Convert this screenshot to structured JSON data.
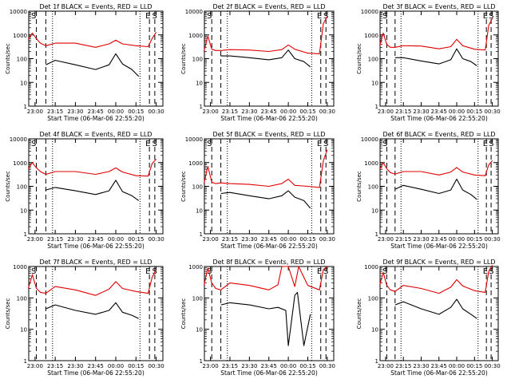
{
  "figure": {
    "background": "#ffffff",
    "axis_color": "#000000",
    "events_color": "#000000",
    "lld_color": "#e00000"
  },
  "panel_labels": [
    "Det 1f",
    "Det 2f",
    "Det 3f",
    "Det 4f",
    "Det 5f",
    "Det 6f",
    "Det 7f",
    "Det 8f",
    "Det 9f"
  ],
  "chart_data": [
    {
      "type": "line",
      "title": "Det 1f BLACK = Events, RED = LLD",
      "xlabel": "Start Time (06-Mar-06 22:55:20)",
      "ylabel": "Counts/sec",
      "xlim": [
        "22:55:20",
        "00:35"
      ],
      "ylim": [
        1,
        10000
      ],
      "yscale": "log",
      "xticks": [
        "23:00",
        "23:15",
        "23:30",
        "23:45",
        "00:00",
        "00:15",
        "00:30"
      ],
      "yticks": [
        "1",
        "10",
        "100",
        "1000",
        "10000"
      ],
      "markers": {
        "dashed": [
          "23:01",
          "23:08",
          "00:25",
          "00:29"
        ],
        "dotted": [
          "23:13",
          "00:18"
        ]
      },
      "letters": [
        "S",
        "E",
        "S"
      ],
      "series": [
        {
          "name": "Events",
          "x": [
            "23:08",
            "23:15",
            "23:30",
            "23:45",
            "23:55",
            "00:00",
            "00:05",
            "00:12",
            "00:17"
          ],
          "y": [
            55,
            85,
            55,
            35,
            55,
            160,
            60,
            35,
            18
          ]
        },
        {
          "name": "LLD",
          "x": [
            "22:55",
            "22:58",
            "23:01",
            "23:04",
            "23:08",
            "23:15",
            "23:30",
            "23:45",
            "23:55",
            "00:00",
            "00:05",
            "00:15",
            "00:24",
            "00:27",
            "00:30"
          ],
          "y": [
            650,
            1200,
            700,
            450,
            350,
            450,
            450,
            300,
            420,
            600,
            420,
            350,
            320,
            700,
            1300
          ]
        }
      ]
    },
    {
      "type": "line",
      "title": "Det 2f BLACK = Events, RED = LLD",
      "xlabel": "Start Time (06-Mar-06 22:55:20)",
      "ylabel": "Counts/sec",
      "xlim": [
        "22:55:20",
        "00:35"
      ],
      "ylim": [
        1,
        10000
      ],
      "yscale": "log",
      "xticks": [
        "23:00",
        "23:15",
        "23:30",
        "23:45",
        "00:00",
        "00:15",
        "00:30"
      ],
      "yticks": [
        "1",
        "10",
        "100",
        "1000",
        "10000"
      ],
      "markers": {
        "dashed": [
          "23:01",
          "23:08",
          "00:25",
          "00:29"
        ],
        "dotted": [
          "23:13",
          "00:18"
        ]
      },
      "letters": [
        "S",
        "E",
        "S"
      ],
      "series": [
        {
          "name": "Events",
          "x": [
            "23:08",
            "23:15",
            "23:30",
            "23:45",
            "23:55",
            "00:00",
            "00:05",
            "00:12",
            "00:17"
          ],
          "y": [
            130,
            130,
            110,
            90,
            110,
            230,
            100,
            75,
            45
          ]
        },
        {
          "name": "LLD",
          "x": [
            "22:55",
            "22:58",
            "23:01",
            "23:04",
            "23:08",
            "23:15",
            "23:30",
            "23:45",
            "23:55",
            "00:00",
            "00:05",
            "00:15",
            "00:24",
            "00:27",
            "00:30"
          ],
          "y": [
            200,
            900,
            250,
            220,
            220,
            240,
            230,
            200,
            240,
            380,
            250,
            170,
            160,
            3000,
            6000
          ]
        }
      ]
    },
    {
      "type": "line",
      "title": "Det 3f BLACK = Events, RED = LLD",
      "xlabel": "Start Time (06-Mar-06 22:55:20)",
      "ylabel": "Counts/sec",
      "xlim": [
        "22:55:20",
        "00:35"
      ],
      "ylim": [
        1,
        10000
      ],
      "yscale": "log",
      "xticks": [
        "23:00",
        "23:15",
        "23:30",
        "23:45",
        "00:00",
        "00:15",
        "00:30"
      ],
      "yticks": [
        "1",
        "10",
        "100",
        "1000",
        "10000"
      ],
      "markers": {
        "dashed": [
          "23:01",
          "23:08",
          "00:25",
          "00:29"
        ],
        "dotted": [
          "23:13",
          "00:18"
        ]
      },
      "letters": [
        "S",
        "E",
        "S"
      ],
      "series": [
        {
          "name": "Events",
          "x": [
            "23:08",
            "23:15",
            "23:30",
            "23:45",
            "23:55",
            "00:00",
            "00:05",
            "00:12",
            "00:17"
          ],
          "y": [
            110,
            110,
            80,
            60,
            90,
            260,
            100,
            75,
            50
          ]
        },
        {
          "name": "LLD",
          "x": [
            "22:55",
            "22:58",
            "23:01",
            "23:04",
            "23:08",
            "23:15",
            "23:30",
            "23:45",
            "23:55",
            "00:00",
            "00:05",
            "00:15",
            "00:24",
            "00:27",
            "00:30"
          ],
          "y": [
            350,
            1200,
            400,
            300,
            300,
            350,
            340,
            260,
            320,
            650,
            350,
            250,
            230,
            2500,
            5000
          ]
        }
      ]
    },
    {
      "type": "line",
      "title": "Det 4f BLACK = Events, RED = LLD",
      "xlabel": "Start Time (06-Mar-06 22:55:20)",
      "ylabel": "Counts/sec",
      "xlim": [
        "22:55:20",
        "00:35"
      ],
      "ylim": [
        1,
        10000
      ],
      "yscale": "log",
      "xticks": [
        "23:00",
        "23:15",
        "23:30",
        "23:45",
        "00:00",
        "00:15",
        "00:30"
      ],
      "yticks": [
        "1",
        "10",
        "100",
        "1000",
        "10000"
      ],
      "markers": {
        "dashed": [
          "23:01",
          "23:08",
          "00:25",
          "00:29"
        ],
        "dotted": [
          "23:13",
          "00:18"
        ]
      },
      "letters": [
        "S",
        "E",
        "S"
      ],
      "series": [
        {
          "name": "Events",
          "x": [
            "23:08",
            "23:15",
            "23:30",
            "23:45",
            "23:55",
            "00:00",
            "00:05",
            "00:12",
            "00:17"
          ],
          "y": [
            70,
            90,
            65,
            45,
            65,
            180,
            60,
            40,
            25
          ]
        },
        {
          "name": "LLD",
          "x": [
            "22:55",
            "22:58",
            "23:01",
            "23:04",
            "23:08",
            "23:15",
            "23:30",
            "23:45",
            "23:55",
            "00:00",
            "00:05",
            "00:15",
            "00:24",
            "00:27",
            "00:30"
          ],
          "y": [
            550,
            1000,
            600,
            420,
            320,
            420,
            420,
            320,
            420,
            600,
            400,
            280,
            270,
            900,
            1400
          ]
        }
      ]
    },
    {
      "type": "line",
      "title": "Det 5f BLACK = Events, RED = LLD",
      "xlabel": "Start Time (06-Mar-06 22:55:20)",
      "ylabel": "Counts/sec",
      "xlim": [
        "22:55:20",
        "00:35"
      ],
      "ylim": [
        1,
        10000
      ],
      "yscale": "log",
      "xticks": [
        "23:00",
        "23:15",
        "23:30",
        "23:45",
        "00:00",
        "00:15",
        "00:30"
      ],
      "yticks": [
        "1",
        "10",
        "100",
        "1000",
        "10000"
      ],
      "markers": {
        "dashed": [
          "23:01",
          "23:08",
          "00:25",
          "00:29"
        ],
        "dotted": [
          "23:13",
          "00:18"
        ]
      },
      "letters": [
        "S",
        "E",
        "S"
      ],
      "series": [
        {
          "name": "Events",
          "x": [
            "23:08",
            "23:15",
            "23:30",
            "23:45",
            "23:55",
            "00:00",
            "00:05",
            "00:12",
            "00:17"
          ],
          "y": [
            50,
            55,
            40,
            30,
            40,
            65,
            35,
            25,
            12
          ]
        },
        {
          "name": "LLD",
          "x": [
            "22:55",
            "22:58",
            "23:01",
            "23:04",
            "23:08",
            "23:15",
            "23:30",
            "23:45",
            "23:55",
            "00:00",
            "00:05",
            "00:15",
            "00:24",
            "00:27",
            "00:30"
          ],
          "y": [
            130,
            700,
            150,
            130,
            140,
            130,
            120,
            100,
            130,
            200,
            110,
            100,
            90,
            1200,
            3500
          ]
        }
      ]
    },
    {
      "type": "line",
      "title": "Det 6f BLACK = Events, RED = LLD",
      "xlabel": "Start Time (06-Mar-06 22:55:20)",
      "ylabel": "Counts/sec",
      "xlim": [
        "22:55:20",
        "00:35"
      ],
      "ylim": [
        1,
        10000
      ],
      "yscale": "log",
      "xticks": [
        "23:00",
        "23:15",
        "23:30",
        "23:45",
        "00:00",
        "00:15",
        "00:30"
      ],
      "yticks": [
        "1",
        "10",
        "100",
        "1000",
        "10000"
      ],
      "markers": {
        "dashed": [
          "23:01",
          "23:08",
          "00:25",
          "00:29"
        ],
        "dotted": [
          "23:13",
          "00:18"
        ]
      },
      "letters": [
        "S",
        "E",
        "S"
      ],
      "series": [
        {
          "name": "Events",
          "x": [
            "23:08",
            "23:15",
            "23:30",
            "23:45",
            "23:55",
            "00:00",
            "00:05",
            "00:12",
            "00:17"
          ],
          "y": [
            75,
            110,
            75,
            50,
            70,
            200,
            70,
            45,
            28
          ]
        },
        {
          "name": "LLD",
          "x": [
            "22:55",
            "22:58",
            "23:01",
            "23:04",
            "23:08",
            "23:15",
            "23:30",
            "23:45",
            "23:55",
            "00:00",
            "00:05",
            "00:15",
            "00:24",
            "00:27",
            "00:30"
          ],
          "y": [
            500,
            1000,
            550,
            380,
            330,
            420,
            420,
            300,
            400,
            620,
            400,
            300,
            280,
            800,
            1200
          ]
        }
      ]
    },
    {
      "type": "line",
      "title": "Det 7f BLACK = Events, RED = LLD",
      "xlabel": "Start Time (06-Mar-06 22:55:20)",
      "ylabel": "Counts/sec",
      "xlim": [
        "22:55:20",
        "00:35"
      ],
      "ylim": [
        1,
        1000
      ],
      "yscale": "log",
      "xticks": [
        "23:00",
        "23:15",
        "23:30",
        "23:45",
        "00:00",
        "00:15",
        "00:30"
      ],
      "yticks": [
        "1",
        "10",
        "100",
        "1000"
      ],
      "markers": {
        "dashed": [
          "23:01",
          "23:08",
          "00:25",
          "00:29"
        ],
        "dotted": [
          "23:13",
          "00:18"
        ]
      },
      "letters": [
        "S",
        "E",
        "S"
      ],
      "series": [
        {
          "name": "Events",
          "x": [
            "23:08",
            "23:15",
            "23:30",
            "23:45",
            "23:55",
            "00:00",
            "00:05",
            "00:12",
            "00:17"
          ],
          "y": [
            45,
            60,
            40,
            30,
            40,
            70,
            35,
            28,
            22
          ]
        },
        {
          "name": "LLD",
          "x": [
            "22:55",
            "22:58",
            "23:01",
            "23:04",
            "23:08",
            "23:15",
            "23:30",
            "23:45",
            "23:55",
            "00:00",
            "00:05",
            "00:15",
            "00:24",
            "00:27",
            "00:30"
          ],
          "y": [
            200,
            550,
            200,
            150,
            140,
            230,
            180,
            120,
            190,
            330,
            200,
            160,
            140,
            450,
            800
          ]
        }
      ]
    },
    {
      "type": "line",
      "title": "Det 8f BLACK = Events, RED = LLD",
      "xlabel": "Start Time (06-Mar-06 22:55:20)",
      "ylabel": "Counts/sec",
      "xlim": [
        "22:55:20",
        "00:35"
      ],
      "ylim": [
        1,
        1000
      ],
      "yscale": "log",
      "xticks": [
        "23:00",
        "23:15",
        "23:30",
        "23:45",
        "00:00",
        "00:15",
        "00:30"
      ],
      "yticks": [
        "1",
        "10",
        "100",
        "1000"
      ],
      "markers": {
        "dashed": [
          "23:01",
          "23:08",
          "00:25",
          "00:29"
        ],
        "dotted": [
          "23:13",
          "00:18"
        ]
      },
      "letters": [
        "S",
        "E",
        "S"
      ],
      "series": [
        {
          "name": "Events",
          "x": [
            "23:08",
            "23:15",
            "23:30",
            "23:45",
            "23:52",
            "23:58",
            "00:00",
            "00:05",
            "00:07",
            "00:12",
            "00:17"
          ],
          "y": [
            60,
            70,
            60,
            45,
            50,
            40,
            3,
            120,
            150,
            3,
            30
          ]
        },
        {
          "name": "LLD",
          "x": [
            "22:55",
            "22:58",
            "23:01",
            "23:04",
            "23:08",
            "23:15",
            "23:30",
            "23:45",
            "23:52",
            "23:55",
            "00:00",
            "00:05",
            "00:08",
            "00:15",
            "00:24",
            "00:27",
            "00:30"
          ],
          "y": [
            250,
            900,
            300,
            200,
            180,
            300,
            250,
            180,
            260,
            1000,
            1000,
            230,
            1000,
            250,
            180,
            800,
            1000
          ]
        }
      ]
    },
    {
      "type": "line",
      "title": "Det 9f BLACK = Events, RED = LLD",
      "xlabel": "Start Time (06-Mar-06 22:55:20)",
      "ylabel": "Counts/sec",
      "xlim": [
        "22:55:20",
        "00:35"
      ],
      "ylim": [
        1,
        1000
      ],
      "yscale": "log",
      "xticks": [
        "23:00",
        "23:15",
        "23:30",
        "23:45",
        "00:00",
        "00:15",
        "00:30"
      ],
      "yticks": [
        "1",
        "10",
        "100",
        "1000"
      ],
      "markers": {
        "dashed": [
          "23:01",
          "23:08",
          "00:25",
          "00:29"
        ],
        "dotted": [
          "23:13",
          "00:18"
        ]
      },
      "letters": [
        "S",
        "E",
        "S"
      ],
      "series": [
        {
          "name": "Events",
          "x": [
            "23:08",
            "23:15",
            "23:30",
            "23:45",
            "23:55",
            "00:00",
            "00:05",
            "00:12",
            "00:17"
          ],
          "y": [
            60,
            75,
            45,
            30,
            50,
            90,
            45,
            30,
            22
          ]
        },
        {
          "name": "LLD",
          "x": [
            "22:55",
            "22:58",
            "23:01",
            "23:04",
            "23:08",
            "23:15",
            "23:30",
            "23:45",
            "23:55",
            "00:00",
            "00:05",
            "00:15",
            "00:24",
            "00:27",
            "00:30"
          ],
          "y": [
            250,
            650,
            250,
            180,
            160,
            250,
            200,
            140,
            220,
            380,
            240,
            170,
            150,
            700,
            1100
          ]
        }
      ]
    }
  ]
}
